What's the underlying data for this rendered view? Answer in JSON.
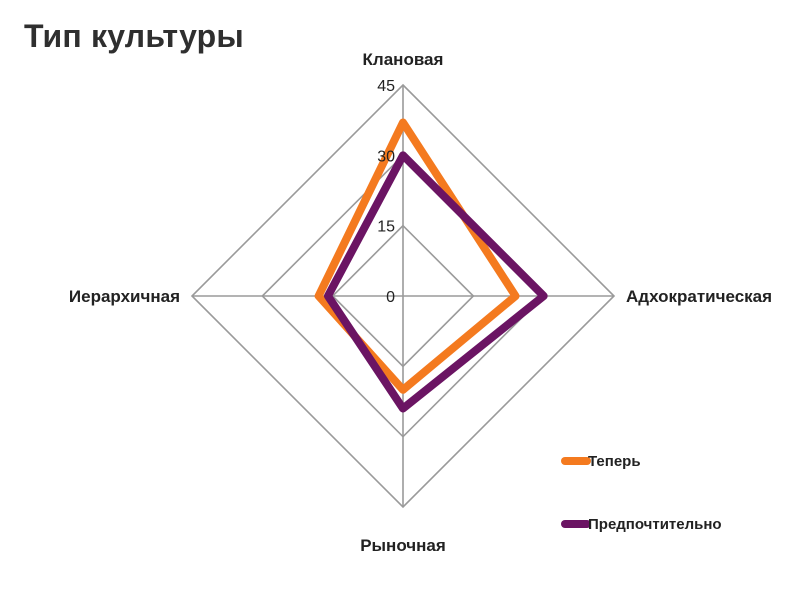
{
  "chart_data": {
    "type": "radar",
    "title": "Тип культуры",
    "axes": [
      "Клановая",
      "Адхократическая",
      "Рыночная",
      "Иерархичная"
    ],
    "ticks": [
      0,
      15,
      30,
      45
    ],
    "rlim": [
      0,
      45
    ],
    "grid": true,
    "legend_position": "bottom-right",
    "series": [
      {
        "name": "Теперь",
        "color": "#F47A1F",
        "values": [
          37,
          24,
          20,
          18
        ]
      },
      {
        "name": "Предпочтительно",
        "color": "#6B1463",
        "values": [
          30,
          30,
          24,
          16
        ]
      }
    ]
  },
  "colors": {
    "grid": "#9a9a9a",
    "text": "#222222"
  }
}
